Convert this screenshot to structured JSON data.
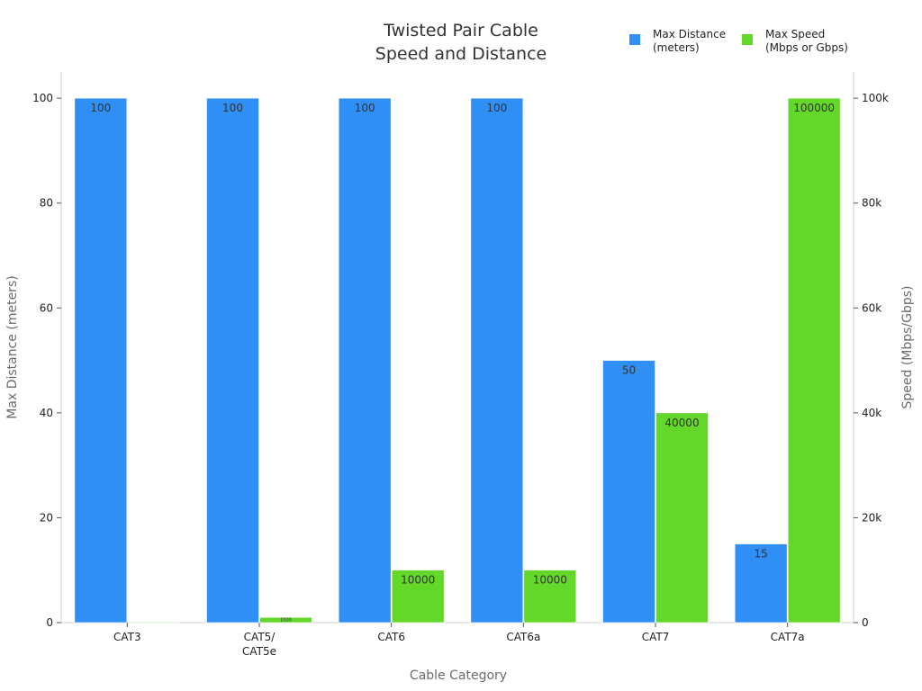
{
  "chart_data": {
    "type": "bar",
    "title": [
      "Twisted Pair Cable",
      "Speed and Distance"
    ],
    "xlabel": "Cable Category",
    "ylabel_left": "Max Distance (meters)",
    "ylabel_right": "Speed (Mbps/Gbps)",
    "categories": [
      [
        "CAT3"
      ],
      [
        "CAT5/",
        "CAT5e"
      ],
      [
        "CAT6"
      ],
      [
        "CAT6a"
      ],
      [
        "CAT7"
      ],
      [
        "CAT7a"
      ]
    ],
    "series": [
      {
        "name": [
          "Max Distance",
          "(meters)"
        ],
        "axis": "left",
        "color": "#2f8ff5",
        "values": [
          100,
          100,
          100,
          100,
          50,
          15
        ],
        "labels": [
          "100",
          "100",
          "100",
          "100",
          "50",
          "15"
        ]
      },
      {
        "name": [
          "Max Speed",
          "(Mbps or Gbps)"
        ],
        "axis": "right",
        "color": "#63d82a",
        "values": [
          10,
          1000,
          10000,
          10000,
          40000,
          100000
        ],
        "labels": [
          "",
          "1000",
          "10000",
          "10000",
          "40000",
          "100000"
        ]
      }
    ],
    "ylim_left": [
      0,
      105
    ],
    "ylim_right": [
      0,
      105000
    ],
    "yticks_left": [
      0,
      20,
      40,
      60,
      80,
      100
    ],
    "yticks_right": [
      0,
      20000,
      40000,
      60000,
      80000,
      100000
    ],
    "ytick_labels_right": [
      "0",
      "20k",
      "40k",
      "60k",
      "80k",
      "100k"
    ],
    "legend_position": "top-right",
    "grid": false
  }
}
